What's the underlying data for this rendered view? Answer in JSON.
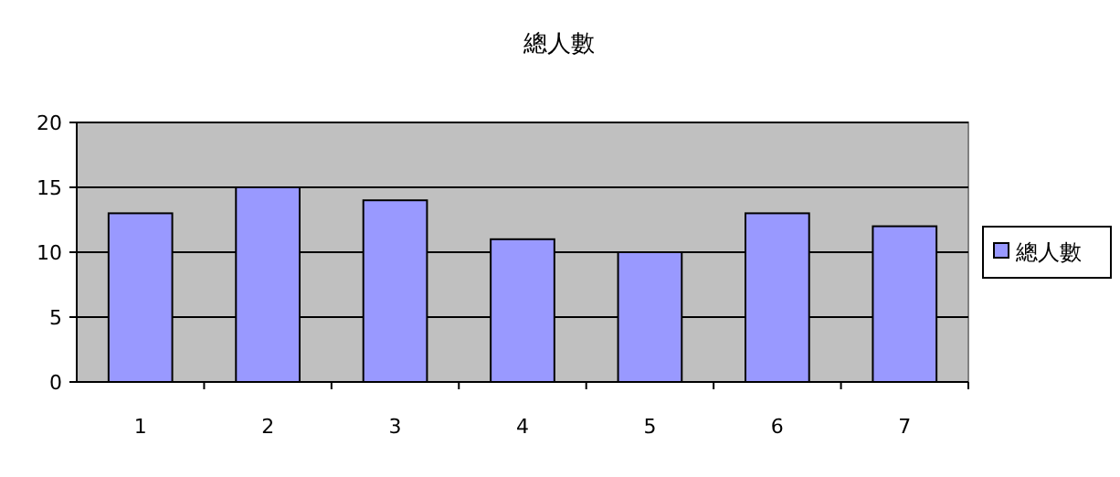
{
  "chart_data": {
    "type": "bar",
    "title": "總人數",
    "categories": [
      "1",
      "2",
      "3",
      "4",
      "5",
      "6",
      "7"
    ],
    "series": [
      {
        "name": "總人數",
        "color": "#9999ff",
        "values": [
          13,
          15,
          14,
          11,
          10,
          13,
          12
        ]
      }
    ],
    "ylim": [
      0,
      20
    ],
    "yticks": [
      0,
      5,
      10,
      15,
      20
    ],
    "grid": "y",
    "legend": "right"
  }
}
